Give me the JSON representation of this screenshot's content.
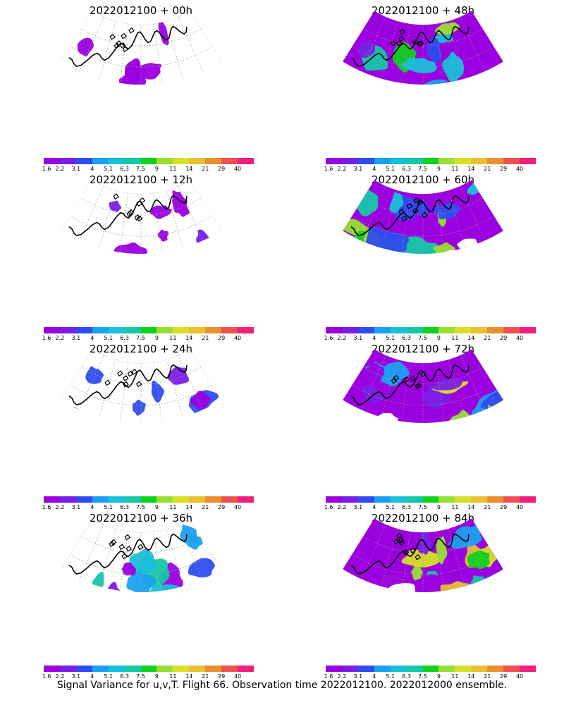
{
  "panels": [
    {
      "title": "2022012100 + 00h",
      "level": 0.1
    },
    {
      "title": "2022012100 + 48h",
      "level": 0.78
    },
    {
      "title": "2022012100 + 12h",
      "level": 0.22
    },
    {
      "title": "2022012100 + 60h",
      "level": 0.85
    },
    {
      "title": "2022012100 + 24h",
      "level": 0.35
    },
    {
      "title": "2022012100 + 72h",
      "level": 0.92
    },
    {
      "title": "2022012100 + 36h",
      "level": 0.55
    },
    {
      "title": "2022012100 + 84h",
      "level": 0.98
    }
  ],
  "colorbar": {
    "labels": [
      "1.6",
      "2.2",
      "3.1",
      "4",
      "5.1",
      "6.3",
      "7.5",
      "9",
      "11",
      "14",
      "21",
      "29",
      "40"
    ],
    "colors": [
      "#9b00e0",
      "#7a1ee6",
      "#2f4cf0",
      "#1aa0f0",
      "#18c0d8",
      "#14c8a8",
      "#10d020",
      "#98e030",
      "#d8e028",
      "#e8c030",
      "#e89030",
      "#f05050",
      "#f0207a"
    ]
  },
  "chart_data": [
    {
      "type": "heatmap",
      "title": "2022012100 + 00h",
      "colorbar_ticks": [
        1.6,
        2.2,
        3.1,
        4,
        5.1,
        6.3,
        7.5,
        9,
        11,
        14,
        21,
        29,
        40
      ]
    },
    {
      "type": "heatmap",
      "title": "2022012100 + 48h",
      "colorbar_ticks": [
        1.6,
        2.2,
        3.1,
        4,
        5.1,
        6.3,
        7.5,
        9,
        11,
        14,
        21,
        29,
        40
      ]
    },
    {
      "type": "heatmap",
      "title": "2022012100 + 12h",
      "colorbar_ticks": [
        1.6,
        2.2,
        3.1,
        4,
        5.1,
        6.3,
        7.5,
        9,
        11,
        14,
        21,
        29,
        40
      ]
    },
    {
      "type": "heatmap",
      "title": "2022012100 + 60h",
      "colorbar_ticks": [
        1.6,
        2.2,
        3.1,
        4,
        5.1,
        6.3,
        7.5,
        9,
        11,
        14,
        21,
        29,
        40
      ]
    },
    {
      "type": "heatmap",
      "title": "2022012100 + 24h",
      "colorbar_ticks": [
        1.6,
        2.2,
        3.1,
        4,
        5.1,
        6.3,
        7.5,
        9,
        11,
        14,
        21,
        29,
        40
      ]
    },
    {
      "type": "heatmap",
      "title": "2022012100 + 72h",
      "colorbar_ticks": [
        1.6,
        2.2,
        3.1,
        4,
        5.1,
        6.3,
        7.5,
        9,
        11,
        14,
        21,
        29,
        40
      ]
    },
    {
      "type": "heatmap",
      "title": "2022012100 + 36h",
      "colorbar_ticks": [
        1.6,
        2.2,
        3.1,
        4,
        5.1,
        6.3,
        7.5,
        9,
        11,
        14,
        21,
        29,
        40
      ]
    },
    {
      "type": "heatmap",
      "title": "2022012100 + 84h",
      "colorbar_ticks": [
        1.6,
        2.2,
        3.1,
        4,
        5.1,
        6.3,
        7.5,
        9,
        11,
        14,
        21,
        29,
        40
      ]
    }
  ],
  "footer": "Signal Variance for u,v,T. Flight 66. Observation time 2022012100. 2022012000 ensemble."
}
